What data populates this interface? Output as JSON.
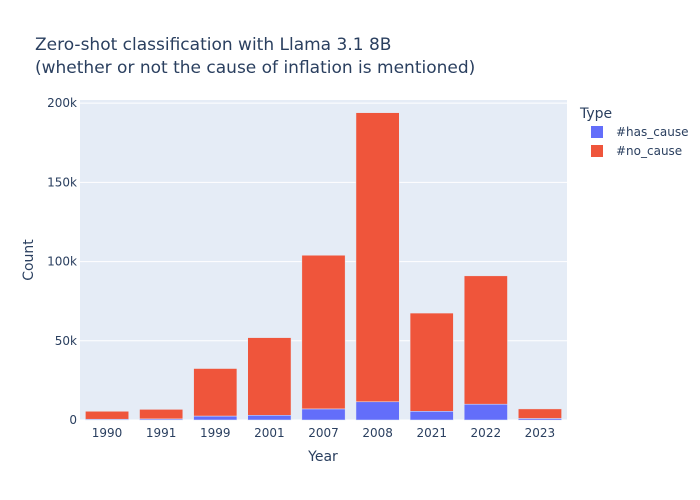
{
  "chart_data": {
    "type": "bar",
    "stacked": true,
    "title_line1": "Zero-shot classification with Llama 3.1 8B",
    "title_line2": "(whether or not the cause of inflation is mentioned)",
    "xlabel": "Year",
    "ylabel": "Count",
    "categories": [
      "1990",
      "1991",
      "1999",
      "2001",
      "2007",
      "2008",
      "2021",
      "2022",
      "2023"
    ],
    "series": [
      {
        "name": "#has_cause",
        "color": "#636efa",
        "values": [
          500,
          700,
          2500,
          3000,
          7000,
          11500,
          5500,
          10000,
          1000
        ]
      },
      {
        "name": "#no_cause",
        "color": "#ef553b",
        "values": [
          5000,
          6000,
          30000,
          49000,
          97000,
          182500,
          62000,
          81000,
          6000
        ]
      }
    ],
    "ylim": [
      0,
      202000
    ],
    "yticks": [
      0,
      50000,
      100000,
      150000,
      200000
    ],
    "ytick_labels": [
      "0",
      "50k",
      "100k",
      "150k",
      "200k"
    ],
    "legend_title": "Type",
    "legend_placement": "right",
    "grid": true,
    "plot_background": "#e5ecf6"
  }
}
